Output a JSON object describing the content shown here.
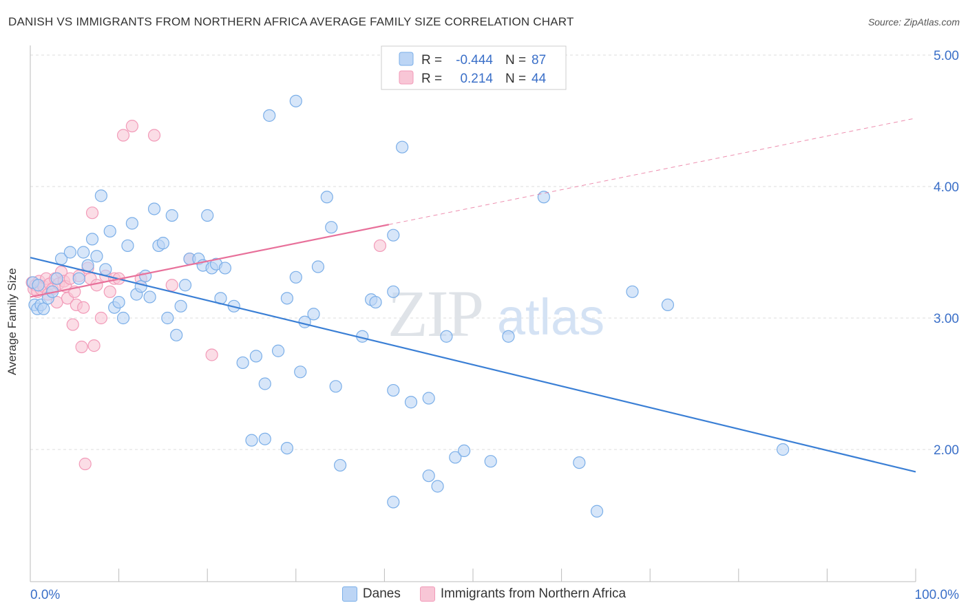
{
  "title": "DANISH VS IMMIGRANTS FROM NORTHERN AFRICA AVERAGE FAMILY SIZE CORRELATION CHART",
  "source": "Source: ZipAtlas.com",
  "watermark": {
    "zip": "ZIP",
    "atlas": "atlas"
  },
  "legend": {
    "rows": [
      {
        "r_label": "R =",
        "r_value": "-0.444",
        "n_label": "N =",
        "n_value": "87",
        "color": "#7aaee8",
        "fill": "#bcd5f5"
      },
      {
        "r_label": "R =",
        "r_value": "0.214",
        "n_label": "N =",
        "n_value": "44",
        "color": "#f29ab8",
        "fill": "#f8c6d6"
      }
    ]
  },
  "bottom_legend": [
    {
      "label": "Danes",
      "fill": "#bcd5f5",
      "stroke": "#7aaee8"
    },
    {
      "label": "Immigrants from Northern Africa",
      "fill": "#f8c6d6",
      "stroke": "#f29ab8"
    }
  ],
  "chart_data": {
    "type": "scatter",
    "xlabel": "",
    "ylabel": "Average Family Size",
    "xlim": [
      0,
      100
    ],
    "ylim": [
      1.0,
      5.1
    ],
    "x_tick_labels": [
      "0.0%",
      "100.0%"
    ],
    "y_ticks": [
      2.0,
      3.0,
      4.0,
      5.0
    ],
    "y_tick_labels": [
      "2.00",
      "3.00",
      "4.00",
      "5.00"
    ],
    "grid": true,
    "legend_position": "top-center",
    "series": [
      {
        "name": "Danes",
        "color": "#3a7fd5",
        "point_fill": "#bcd5f5",
        "point_stroke": "#7aaee8",
        "trend": {
          "x0": 0,
          "y0": 3.46,
          "x1": 100,
          "y1": 1.83,
          "dashed_from": null
        },
        "points": [
          [
            0.3,
            3.27
          ],
          [
            0.5,
            3.1
          ],
          [
            0.8,
            3.07
          ],
          [
            1.2,
            3.1
          ],
          [
            1.5,
            3.07
          ],
          [
            2.0,
            3.15
          ],
          [
            2.5,
            3.2
          ],
          [
            3.0,
            3.3
          ],
          [
            3.5,
            3.45
          ],
          [
            4.5,
            3.5
          ],
          [
            5.5,
            3.3
          ],
          [
            6.0,
            3.5
          ],
          [
            6.5,
            3.4
          ],
          [
            7.0,
            3.6
          ],
          [
            7.5,
            3.47
          ],
          [
            8.0,
            3.93
          ],
          [
            8.5,
            3.37
          ],
          [
            9.0,
            3.66
          ],
          [
            9.5,
            3.08
          ],
          [
            10.0,
            3.12
          ],
          [
            10.5,
            3.0
          ],
          [
            11.0,
            3.55
          ],
          [
            11.5,
            3.72
          ],
          [
            12.0,
            3.18
          ],
          [
            12.5,
            3.24
          ],
          [
            13.0,
            3.32
          ],
          [
            13.5,
            3.16
          ],
          [
            14.0,
            3.83
          ],
          [
            14.5,
            3.55
          ],
          [
            15.0,
            3.57
          ],
          [
            15.5,
            3.0
          ],
          [
            16.0,
            3.78
          ],
          [
            16.5,
            2.87
          ],
          [
            17.0,
            3.09
          ],
          [
            17.5,
            3.25
          ],
          [
            18.0,
            3.45
          ],
          [
            19.0,
            3.45
          ],
          [
            19.5,
            3.4
          ],
          [
            20.0,
            3.78
          ],
          [
            20.5,
            3.38
          ],
          [
            21.0,
            3.41
          ],
          [
            21.5,
            3.15
          ],
          [
            22.0,
            3.38
          ],
          [
            23.0,
            3.09
          ],
          [
            24.0,
            2.66
          ],
          [
            25.0,
            2.07
          ],
          [
            25.5,
            2.71
          ],
          [
            26.5,
            2.5
          ],
          [
            26.5,
            2.08
          ],
          [
            28.0,
            2.75
          ],
          [
            27.0,
            4.54
          ],
          [
            29.0,
            3.15
          ],
          [
            29.0,
            2.01
          ],
          [
            30.0,
            3.31
          ],
          [
            30.5,
            2.59
          ],
          [
            30.0,
            4.65
          ],
          [
            31.0,
            2.97
          ],
          [
            32.0,
            3.03
          ],
          [
            32.5,
            3.39
          ],
          [
            33.5,
            3.92
          ],
          [
            34.0,
            3.69
          ],
          [
            34.5,
            2.48
          ],
          [
            35.0,
            1.88
          ],
          [
            37.5,
            2.86
          ],
          [
            38.5,
            3.14
          ],
          [
            39.0,
            3.12
          ],
          [
            41.0,
            2.45
          ],
          [
            41.0,
            3.63
          ],
          [
            41.0,
            3.2
          ],
          [
            42.0,
            4.3
          ],
          [
            41.0,
            1.6
          ],
          [
            43.0,
            2.36
          ],
          [
            45.0,
            2.39
          ],
          [
            45.0,
            1.8
          ],
          [
            46.0,
            1.72
          ],
          [
            47.0,
            2.86
          ],
          [
            48.0,
            1.94
          ],
          [
            49.0,
            1.99
          ],
          [
            52.0,
            1.91
          ],
          [
            54.0,
            2.86
          ],
          [
            58.0,
            3.92
          ],
          [
            62.0,
            1.9
          ],
          [
            64.0,
            1.53
          ],
          [
            68.0,
            3.2
          ],
          [
            72.0,
            3.1
          ],
          [
            85.0,
            2.0
          ],
          [
            0.9,
            3.25
          ]
        ]
      },
      {
        "name": "Immigrants from Northern Africa",
        "color": "#e8709a",
        "point_fill": "#f8c6d6",
        "point_stroke": "#f29ab8",
        "trend": {
          "x0": 0,
          "y0": 3.16,
          "x1": 100,
          "y1": 4.52,
          "solid_until": 40.5
        },
        "points": [
          [
            0.2,
            3.27
          ],
          [
            0.4,
            3.22
          ],
          [
            0.6,
            3.25
          ],
          [
            0.8,
            3.2
          ],
          [
            1.0,
            3.28
          ],
          [
            1.2,
            3.22
          ],
          [
            1.5,
            3.24
          ],
          [
            1.8,
            3.3
          ],
          [
            2.0,
            3.18
          ],
          [
            2.2,
            3.26
          ],
          [
            2.5,
            3.22
          ],
          [
            2.8,
            3.3
          ],
          [
            3.0,
            3.12
          ],
          [
            3.2,
            3.26
          ],
          [
            3.5,
            3.35
          ],
          [
            3.8,
            3.28
          ],
          [
            4.0,
            3.24
          ],
          [
            4.2,
            3.15
          ],
          [
            4.5,
            3.3
          ],
          [
            4.8,
            2.95
          ],
          [
            5.0,
            3.2
          ],
          [
            5.2,
            3.1
          ],
          [
            5.5,
            3.32
          ],
          [
            5.8,
            2.78
          ],
          [
            6.0,
            3.08
          ],
          [
            6.2,
            1.89
          ],
          [
            6.5,
            3.38
          ],
          [
            6.8,
            3.3
          ],
          [
            7.0,
            3.8
          ],
          [
            7.2,
            2.79
          ],
          [
            7.5,
            3.25
          ],
          [
            8.0,
            3.0
          ],
          [
            8.5,
            3.32
          ],
          [
            9.0,
            3.2
          ],
          [
            9.5,
            3.3
          ],
          [
            10.0,
            3.3
          ],
          [
            10.5,
            4.39
          ],
          [
            11.5,
            4.46
          ],
          [
            12.5,
            3.3
          ],
          [
            14.0,
            4.39
          ],
          [
            16.0,
            3.25
          ],
          [
            18.0,
            3.45
          ],
          [
            20.5,
            2.72
          ],
          [
            39.5,
            3.55
          ]
        ]
      }
    ]
  }
}
